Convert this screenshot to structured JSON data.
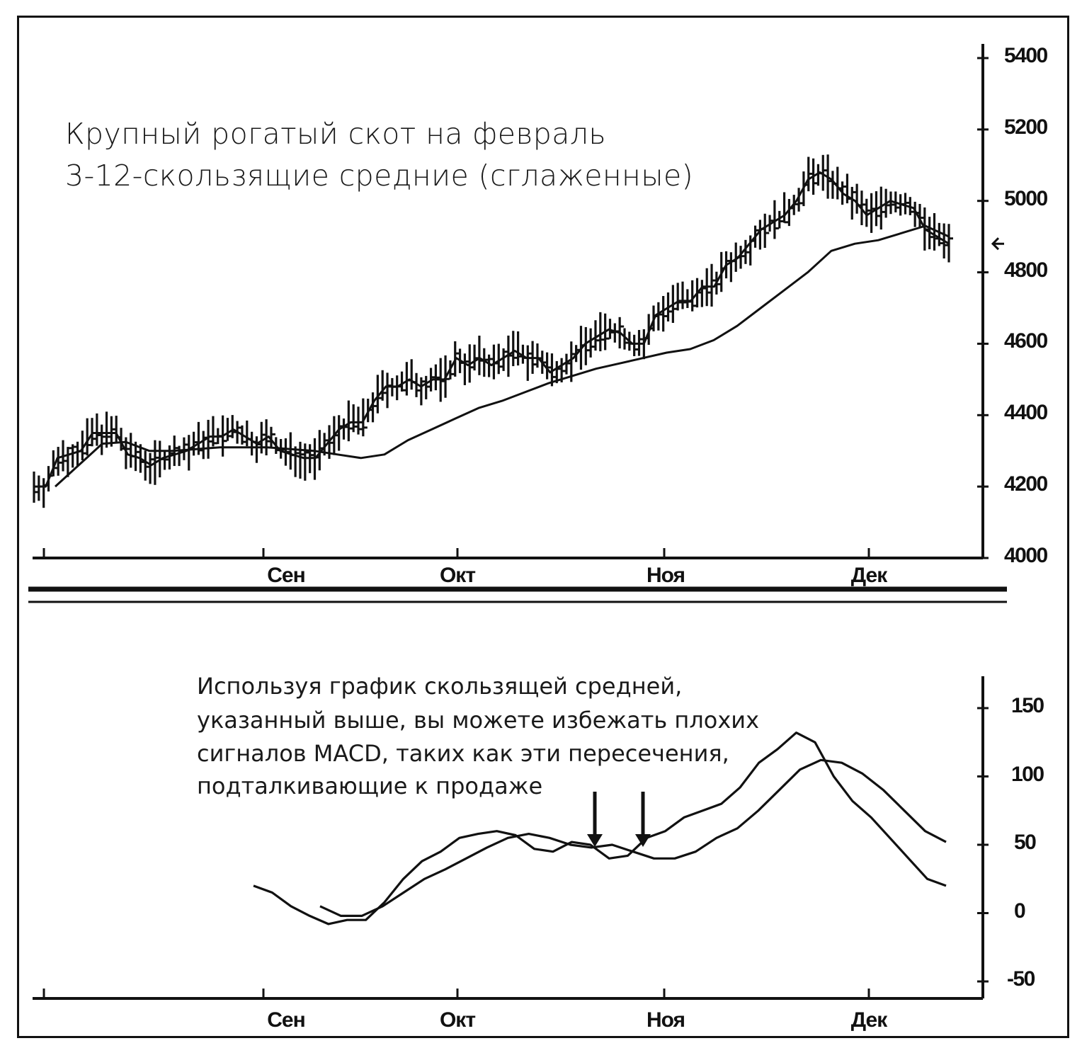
{
  "chart_data": [
    {
      "type": "bar-ohlc",
      "title_lines": [
        "Крупный рогатый скот на февраль",
        "3-12-скользящие средние (сглаженные)"
      ],
      "xlabels": [
        "Сен",
        "Окт",
        "Ноя",
        "Дек"
      ],
      "yticks": [
        4000,
        4200,
        4400,
        4600,
        4800,
        5000,
        5200,
        5400
      ],
      "ylim": [
        4000,
        5400
      ],
      "series": [
        {
          "name": "3",
          "style": "stair-line",
          "values": [
            4200,
            4200,
            4280,
            4290,
            4300,
            4350,
            4350,
            4350,
            4290,
            4280,
            4260,
            4280,
            4290,
            4300,
            4320,
            4340,
            4340,
            4360,
            4340,
            4320,
            4340,
            4300,
            4290,
            4280,
            4280,
            4320,
            4360,
            4380,
            4380,
            4440,
            4480,
            4480,
            4500,
            4480,
            4500,
            4500,
            4560,
            4540,
            4560,
            4540,
            4560,
            4580,
            4560,
            4560,
            4520,
            4540,
            4560,
            4600,
            4620,
            4640,
            4630,
            4600,
            4600,
            4680,
            4700,
            4720,
            4720,
            4760,
            4760,
            4820,
            4840,
            4880,
            4920,
            4940,
            4960,
            5000,
            5060,
            5080,
            5060,
            5020,
            5000,
            4960,
            4980,
            5000,
            4990,
            4980,
            4920,
            4900,
            4880
          ]
        },
        {
          "name": "12",
          "style": "smooth-line",
          "values": [
            4200,
            4260,
            4320,
            4325,
            4300,
            4300,
            4305,
            4310,
            4310,
            4310,
            4305,
            4300,
            4290,
            4280,
            4290,
            4330,
            4360,
            4390,
            4420,
            4440,
            4465,
            4490,
            4510,
            4530,
            4545,
            4560,
            4575,
            4585,
            4610,
            4650,
            4700,
            4750,
            4800,
            4860,
            4880,
            4890,
            4910,
            4930,
            4900
          ]
        }
      ],
      "last_price_marker": 4880
    },
    {
      "type": "line",
      "xlabels": [
        "Сен",
        "Окт",
        "Ноя",
        "Дек"
      ],
      "yticks": [
        -50,
        0,
        50,
        100,
        150
      ],
      "ylim": [
        -50,
        150
      ],
      "series": [
        {
          "name": "MACD",
          "values": [
            20,
            15,
            5,
            -2,
            -8,
            -5,
            -5,
            8,
            25,
            38,
            45,
            55,
            58,
            60,
            57,
            47,
            45,
            52,
            50,
            40,
            42,
            55,
            60,
            70,
            75,
            80,
            92,
            110,
            120,
            132,
            125,
            100,
            82,
            70,
            55,
            40,
            25,
            20
          ]
        },
        {
          "name": "signal",
          "values": [
            5,
            -2,
            -2,
            5,
            15,
            25,
            32,
            40,
            48,
            55,
            58,
            55,
            50,
            48,
            50,
            45,
            40,
            40,
            45,
            55,
            62,
            75,
            90,
            105,
            112,
            110,
            102,
            90,
            75,
            60,
            52
          ]
        }
      ],
      "annotation_lines": [
        "Используя график скользящей средней,",
        "указанный выше, вы можете избежать плохих",
        "сигналов MACD, таких как эти пересечения,",
        "подталкивающие к продаже"
      ]
    }
  ]
}
